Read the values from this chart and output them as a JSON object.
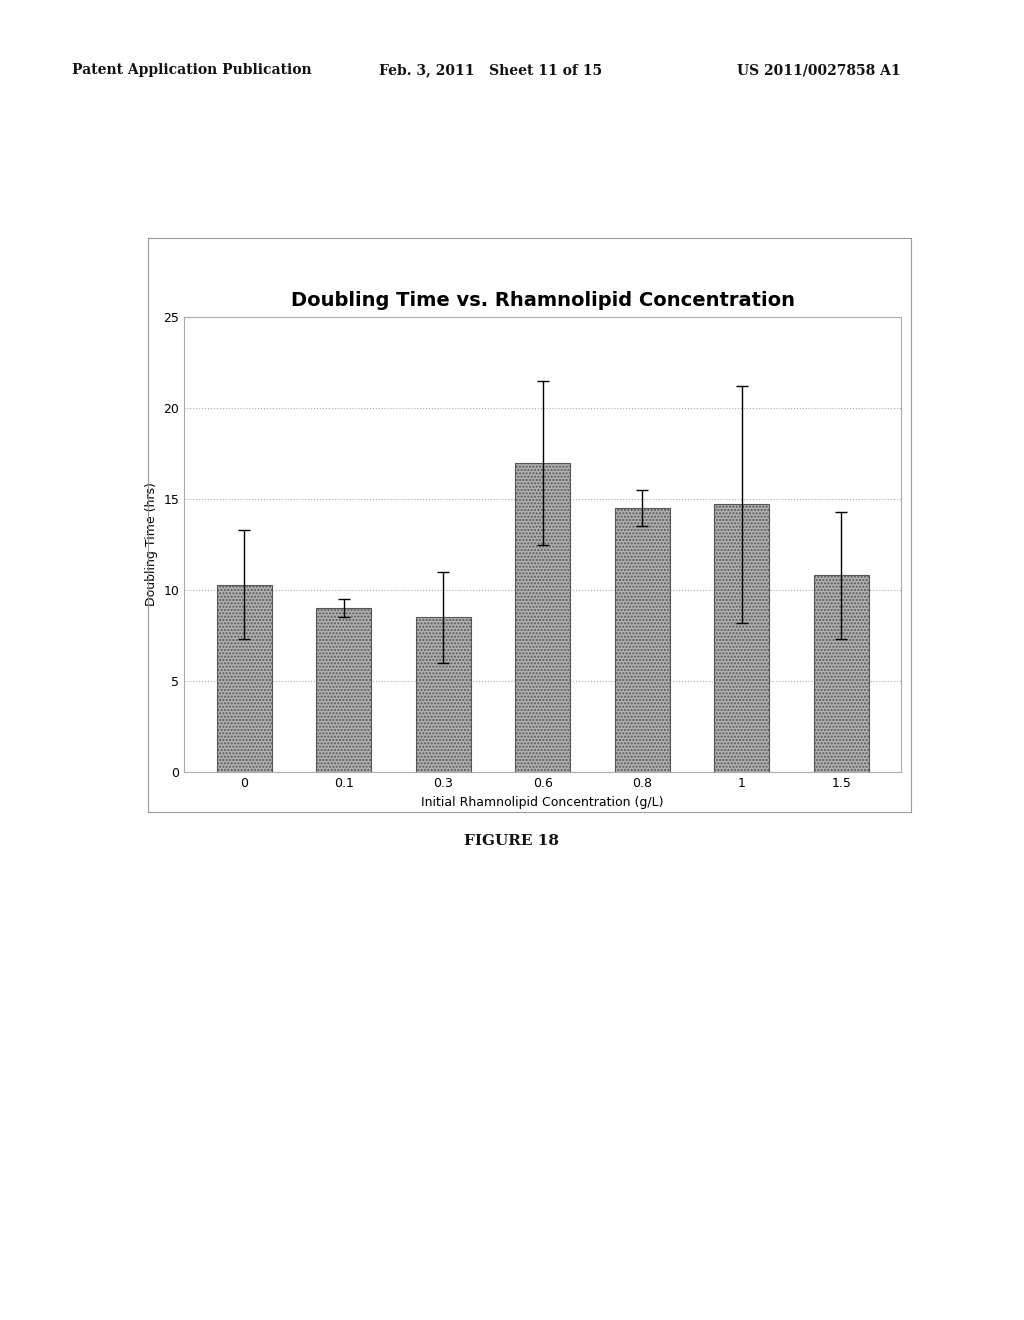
{
  "title": "Doubling Time vs. Rhamnolipid Concentration",
  "xlabel": "Initial Rhamnolipid Concentration (g/L)",
  "ylabel": "Doubling Time (hrs)",
  "categories": [
    "0",
    "0.1",
    "0.3",
    "0.6",
    "0.8",
    "1",
    "1.5"
  ],
  "values": [
    10.3,
    9.0,
    8.5,
    17.0,
    14.5,
    14.7,
    10.8
  ],
  "errors_upper": [
    3.0,
    0.5,
    2.5,
    4.5,
    1.0,
    6.5,
    3.5
  ],
  "errors_lower": [
    3.0,
    0.5,
    2.5,
    4.5,
    1.0,
    6.5,
    3.5
  ],
  "ylim": [
    0,
    25
  ],
  "yticks": [
    0,
    5,
    10,
    15,
    20,
    25
  ],
  "bar_color": "#b0b0b0",
  "bar_hatch": ".....",
  "bar_edgecolor": "#555555",
  "background_color": "#ffffff",
  "plot_background": "#ffffff",
  "title_fontsize": 14,
  "label_fontsize": 9,
  "tick_fontsize": 9,
  "figure_caption": "FIGURE 18",
  "header_left": "Patent Application Publication",
  "header_mid": "Feb. 3, 2011   Sheet 11 of 15",
  "header_right": "US 2011/0027858 A1",
  "header_fontsize": 10
}
